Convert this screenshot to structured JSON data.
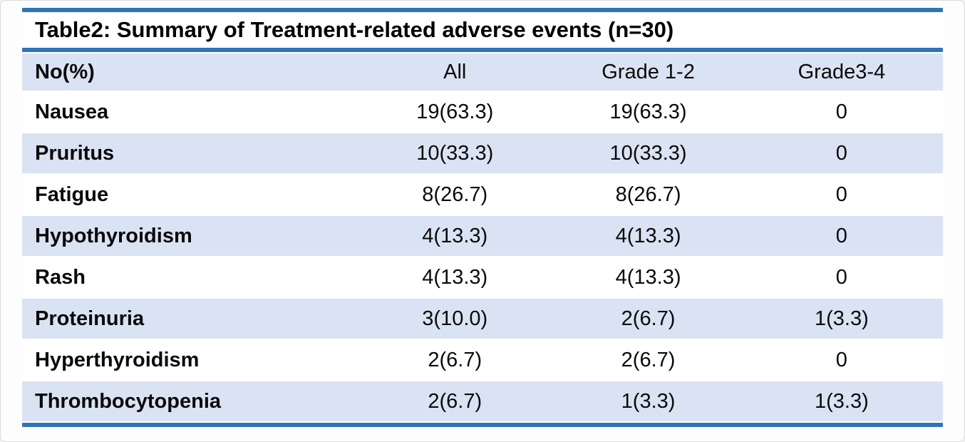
{
  "title": "Table2: Summary of Treatment-related adverse events (n=30)",
  "table": {
    "columns": [
      "No(%)",
      "All",
      "Grade 1-2",
      "Grade3-4"
    ],
    "rows": [
      {
        "name": "Nausea",
        "all": "19(63.3)",
        "grade12": "19(63.3)",
        "grade34": "0"
      },
      {
        "name": "Pruritus",
        "all": "10(33.3)",
        "grade12": "10(33.3)",
        "grade34": "0"
      },
      {
        "name": "Fatigue",
        "all": "8(26.7)",
        "grade12": "8(26.7)",
        "grade34": "0"
      },
      {
        "name": "Hypothyroidism",
        "all": "4(13.3)",
        "grade12": "4(13.3)",
        "grade34": "0"
      },
      {
        "name": "Rash",
        "all": "4(13.3)",
        "grade12": "4(13.3)",
        "grade34": "0"
      },
      {
        "name": "Proteinuria",
        "all": "3(10.0)",
        "grade12": "2(6.7)",
        "grade34": "1(3.3)"
      },
      {
        "name": "Hyperthyroidism",
        "all": "2(6.7)",
        "grade12": "2(6.7)",
        "grade34": "0"
      },
      {
        "name": "Thrombocytopenia",
        "all": "2(6.7)",
        "grade12": "1(3.3)",
        "grade34": "1(3.3)"
      }
    ]
  },
  "colors": {
    "accent_blue": "#2e75b6",
    "band_blue": "#dae3f3",
    "text": "#000000",
    "background": "#ffffff"
  },
  "chart_data": {
    "type": "table",
    "title": "Table2: Summary of Treatment-related adverse events (n=30)",
    "columns": [
      "No(%)",
      "All",
      "Grade 1-2",
      "Grade3-4"
    ],
    "rows": [
      [
        "Nausea",
        "19(63.3)",
        "19(63.3)",
        "0"
      ],
      [
        "Pruritus",
        "10(33.3)",
        "10(33.3)",
        "0"
      ],
      [
        "Fatigue",
        "8(26.7)",
        "8(26.7)",
        "0"
      ],
      [
        "Hypothyroidism",
        "4(13.3)",
        "4(13.3)",
        "0"
      ],
      [
        "Rash",
        "4(13.3)",
        "4(13.3)",
        "0"
      ],
      [
        "Proteinuria",
        "3(10.0)",
        "2(6.7)",
        "1(3.3)"
      ],
      [
        "Hyperthyroidism",
        "2(6.7)",
        "2(6.7)",
        "0"
      ],
      [
        "Thrombocytopenia",
        "2(6.7)",
        "1(3.3)",
        "1(3.3)"
      ]
    ]
  }
}
